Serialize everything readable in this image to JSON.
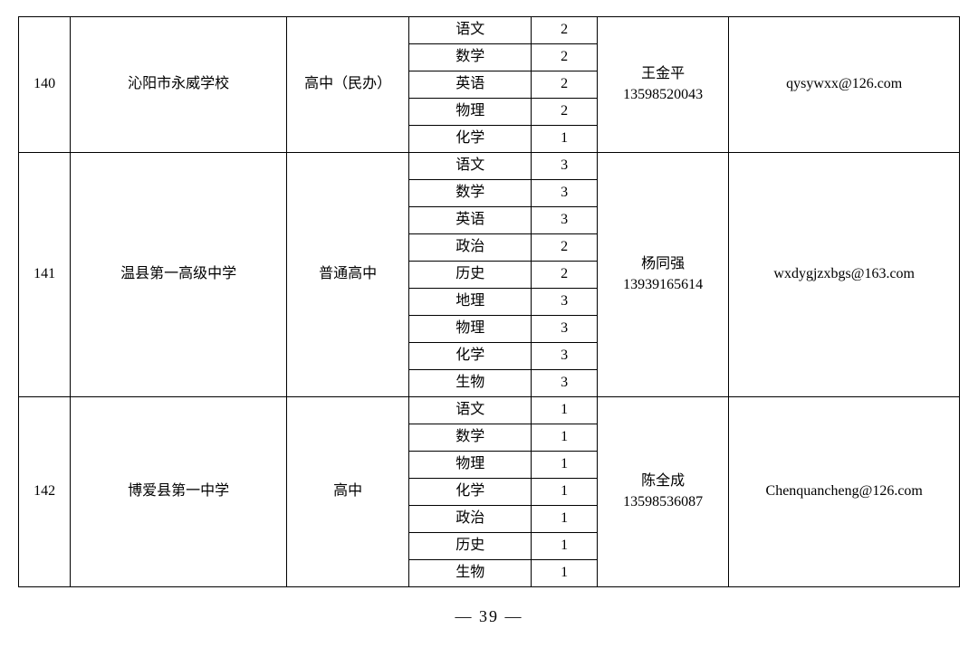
{
  "page_number": "— 39 —",
  "groups": [
    {
      "seq": "140",
      "school": "沁阳市永威学校",
      "type": "高中（民办）",
      "contact_name": "王金平",
      "contact_phone": "13598520043",
      "email": "qysywxx@126.com",
      "rows": [
        {
          "subject": "语文",
          "count": "2"
        },
        {
          "subject": "数学",
          "count": "2"
        },
        {
          "subject": "英语",
          "count": "2"
        },
        {
          "subject": "物理",
          "count": "2"
        },
        {
          "subject": "化学",
          "count": "1"
        }
      ]
    },
    {
      "seq": "141",
      "school": "温县第一高级中学",
      "type": "普通高中",
      "contact_name": "杨同强",
      "contact_phone": "13939165614",
      "email": "wxdygjzxbgs@163.com",
      "rows": [
        {
          "subject": "语文",
          "count": "3"
        },
        {
          "subject": "数学",
          "count": "3"
        },
        {
          "subject": "英语",
          "count": "3"
        },
        {
          "subject": "政治",
          "count": "2"
        },
        {
          "subject": "历史",
          "count": "2"
        },
        {
          "subject": "地理",
          "count": "3"
        },
        {
          "subject": "物理",
          "count": "3"
        },
        {
          "subject": "化学",
          "count": "3"
        },
        {
          "subject": "生物",
          "count": "3"
        }
      ]
    },
    {
      "seq": "142",
      "school": "博爱县第一中学",
      "type": "高中",
      "contact_name": "陈全成",
      "contact_phone": "13598536087",
      "email": "Chenquancheng@126.com",
      "rows": [
        {
          "subject": "语文",
          "count": "1"
        },
        {
          "subject": "数学",
          "count": "1"
        },
        {
          "subject": "物理",
          "count": "1"
        },
        {
          "subject": "化学",
          "count": "1"
        },
        {
          "subject": "政治",
          "count": "1"
        },
        {
          "subject": "历史",
          "count": "1"
        },
        {
          "subject": "生物",
          "count": "1"
        }
      ]
    }
  ]
}
